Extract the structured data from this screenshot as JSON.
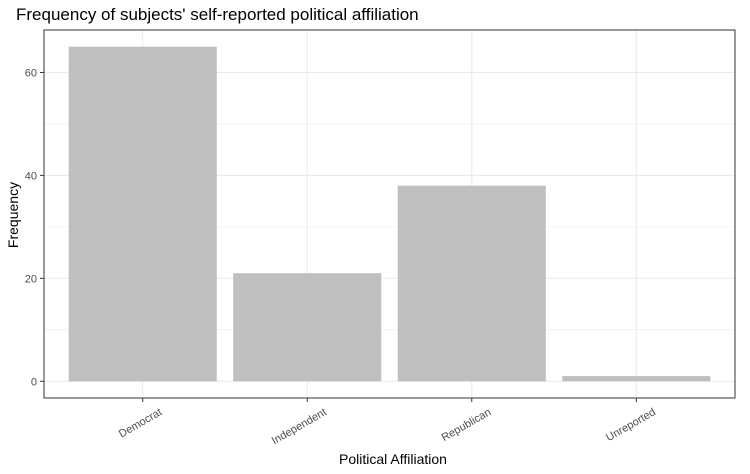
{
  "chart_data": {
    "type": "bar",
    "title": "Frequency of subjects' self-reported political affiliation",
    "xlabel": "Political Affiliation",
    "ylabel": "Frequency",
    "categories": [
      "Democrat",
      "Independent",
      "Republican",
      "Unreported"
    ],
    "values": [
      65,
      21,
      38,
      1
    ],
    "ylim": [
      -3.25,
      68.25
    ],
    "yticks": [
      0,
      20,
      40,
      60
    ],
    "grid": true,
    "bar_color": "#bfbfbf",
    "grid_color": "#ebebeb",
    "panel_border_color": "#333333"
  }
}
